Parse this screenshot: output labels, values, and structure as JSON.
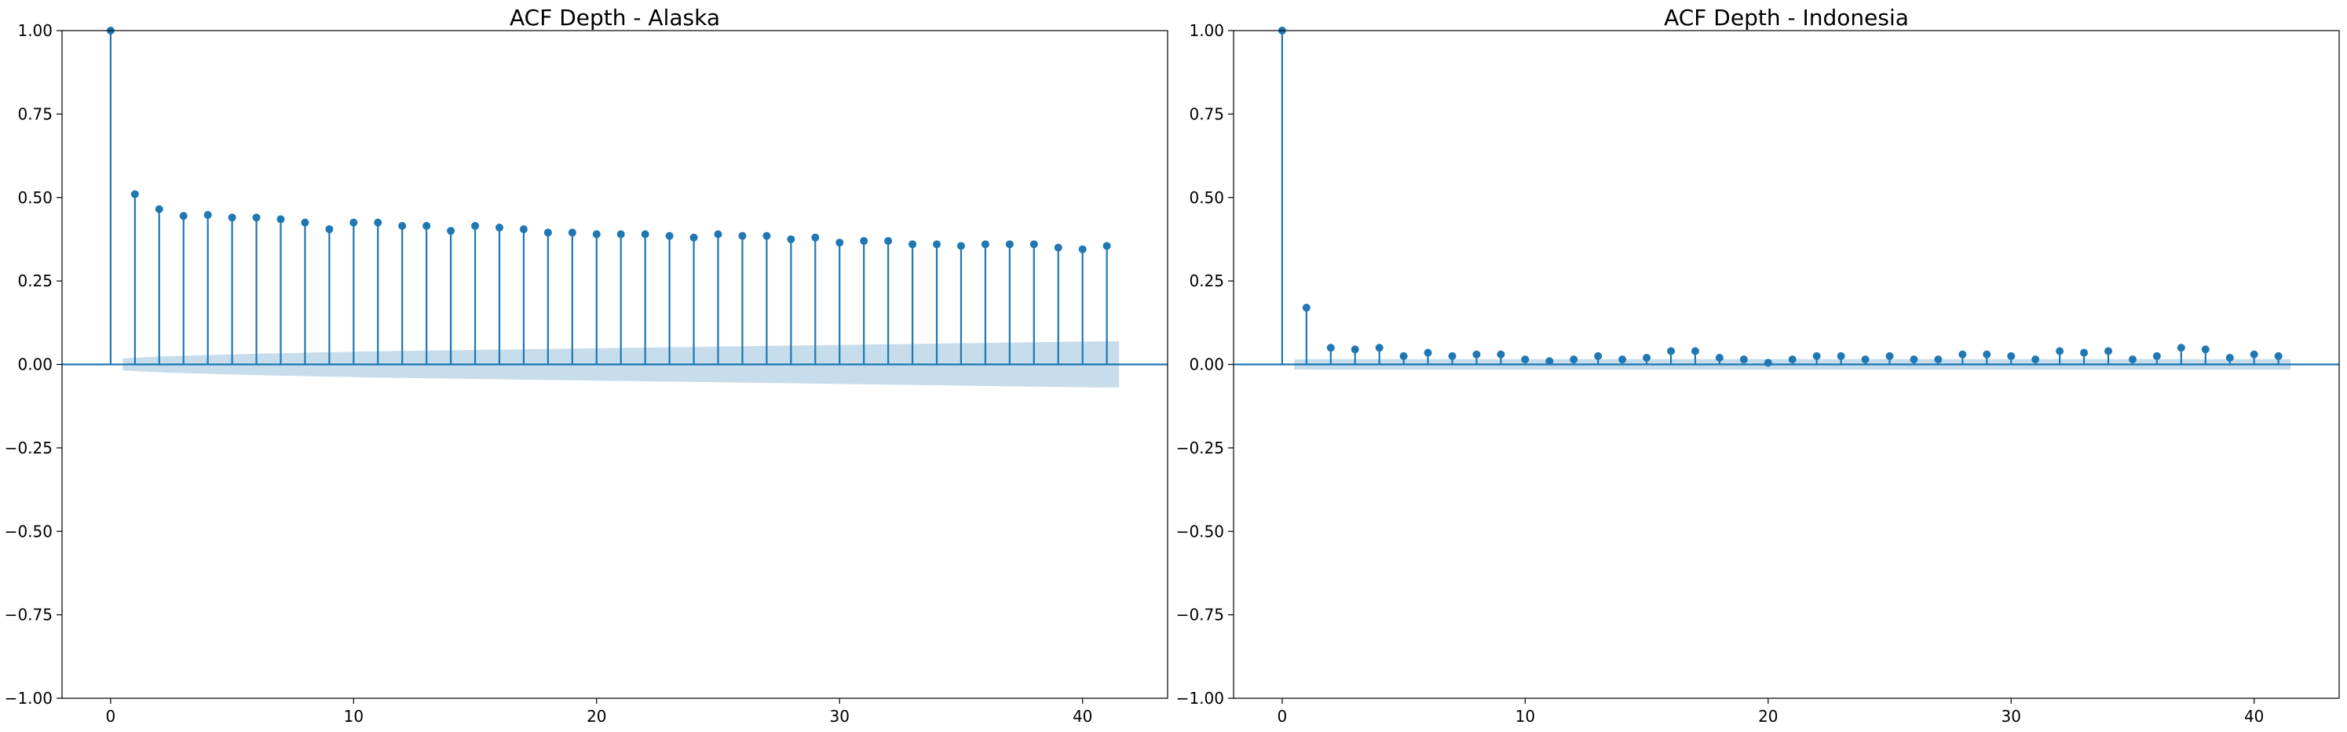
{
  "chart_data": [
    {
      "type": "stem",
      "title": "ACF Depth - Alaska",
      "xlabel": "",
      "ylabel": "",
      "xlim": [
        -2,
        43.5
      ],
      "ylim": [
        -1.0,
        1.0
      ],
      "xticks": [
        0,
        10,
        20,
        30,
        40
      ],
      "yticks": [
        -1.0,
        -0.75,
        -0.5,
        -0.25,
        0.0,
        0.25,
        0.5,
        0.75,
        1.0
      ],
      "ytick_labels": [
        "−1.00",
        "−0.75",
        "−0.50",
        "−0.25",
        "0.00",
        "0.25",
        "0.50",
        "0.75",
        "1.00"
      ],
      "xtick_labels": [
        "0",
        "10",
        "20",
        "30",
        "40"
      ],
      "grid": false,
      "color": "#1f77b4",
      "band_color": "#1f77b4",
      "lags": [
        0,
        1,
        2,
        3,
        4,
        5,
        6,
        7,
        8,
        9,
        10,
        11,
        12,
        13,
        14,
        15,
        16,
        17,
        18,
        19,
        20,
        21,
        22,
        23,
        24,
        25,
        26,
        27,
        28,
        29,
        30,
        31,
        32,
        33,
        34,
        35,
        36,
        37,
        38,
        39,
        40,
        41
      ],
      "values": [
        1.0,
        0.51,
        0.465,
        0.445,
        0.448,
        0.44,
        0.44,
        0.435,
        0.425,
        0.405,
        0.425,
        0.425,
        0.415,
        0.415,
        0.4,
        0.415,
        0.41,
        0.405,
        0.395,
        0.395,
        0.39,
        0.39,
        0.39,
        0.385,
        0.38,
        0.39,
        0.385,
        0.385,
        0.375,
        0.38,
        0.365,
        0.37,
        0.37,
        0.36,
        0.36,
        0.355,
        0.36,
        0.36,
        0.36,
        0.35,
        0.345,
        0.355
      ],
      "conf_upper": [
        0.012,
        0.018,
        0.022,
        0.025,
        0.027,
        0.029,
        0.031,
        0.033,
        0.034,
        0.036,
        0.037,
        0.039,
        0.04,
        0.041,
        0.042,
        0.043,
        0.044,
        0.045,
        0.046,
        0.047,
        0.048,
        0.049,
        0.05,
        0.051,
        0.052,
        0.053,
        0.054,
        0.055,
        0.056,
        0.057,
        0.058,
        0.059,
        0.06,
        0.061,
        0.062,
        0.063,
        0.064,
        0.065,
        0.066,
        0.067,
        0.068,
        0.069
      ]
    },
    {
      "type": "stem",
      "title": "ACF Depth - Indonesia",
      "xlabel": "",
      "ylabel": "",
      "xlim": [
        -2,
        43.5
      ],
      "ylim": [
        -1.0,
        1.0
      ],
      "xticks": [
        0,
        10,
        20,
        30,
        40
      ],
      "yticks": [
        -1.0,
        -0.75,
        -0.5,
        -0.25,
        0.0,
        0.25,
        0.5,
        0.75,
        1.0
      ],
      "ytick_labels": [
        "−1.00",
        "−0.75",
        "−0.50",
        "−0.25",
        "0.00",
        "0.25",
        "0.50",
        "0.75",
        "1.00"
      ],
      "xtick_labels": [
        "0",
        "10",
        "20",
        "30",
        "40"
      ],
      "grid": false,
      "color": "#1f77b4",
      "band_color": "#1f77b4",
      "lags": [
        0,
        1,
        2,
        3,
        4,
        5,
        6,
        7,
        8,
        9,
        10,
        11,
        12,
        13,
        14,
        15,
        16,
        17,
        18,
        19,
        20,
        21,
        22,
        23,
        24,
        25,
        26,
        27,
        28,
        29,
        30,
        31,
        32,
        33,
        34,
        35,
        36,
        37,
        38,
        39,
        40,
        41
      ],
      "values": [
        1.0,
        0.17,
        0.05,
        0.045,
        0.05,
        0.025,
        0.035,
        0.025,
        0.03,
        0.03,
        0.015,
        0.01,
        0.015,
        0.025,
        0.015,
        0.02,
        0.04,
        0.04,
        0.02,
        0.015,
        0.005,
        0.015,
        0.025,
        0.025,
        0.015,
        0.025,
        0.015,
        0.015,
        0.03,
        0.03,
        0.025,
        0.015,
        0.04,
        0.035,
        0.04,
        0.015,
        0.025,
        0.05,
        0.045,
        0.02,
        0.03,
        0.025
      ],
      "conf_upper": [
        0.012,
        0.015,
        0.016,
        0.016,
        0.016,
        0.016,
        0.016,
        0.016,
        0.016,
        0.016,
        0.016,
        0.016,
        0.016,
        0.016,
        0.016,
        0.016,
        0.016,
        0.016,
        0.016,
        0.016,
        0.016,
        0.016,
        0.016,
        0.016,
        0.016,
        0.016,
        0.016,
        0.016,
        0.016,
        0.016,
        0.016,
        0.016,
        0.016,
        0.016,
        0.016,
        0.016,
        0.016,
        0.016,
        0.016,
        0.016,
        0.016,
        0.016
      ]
    }
  ]
}
